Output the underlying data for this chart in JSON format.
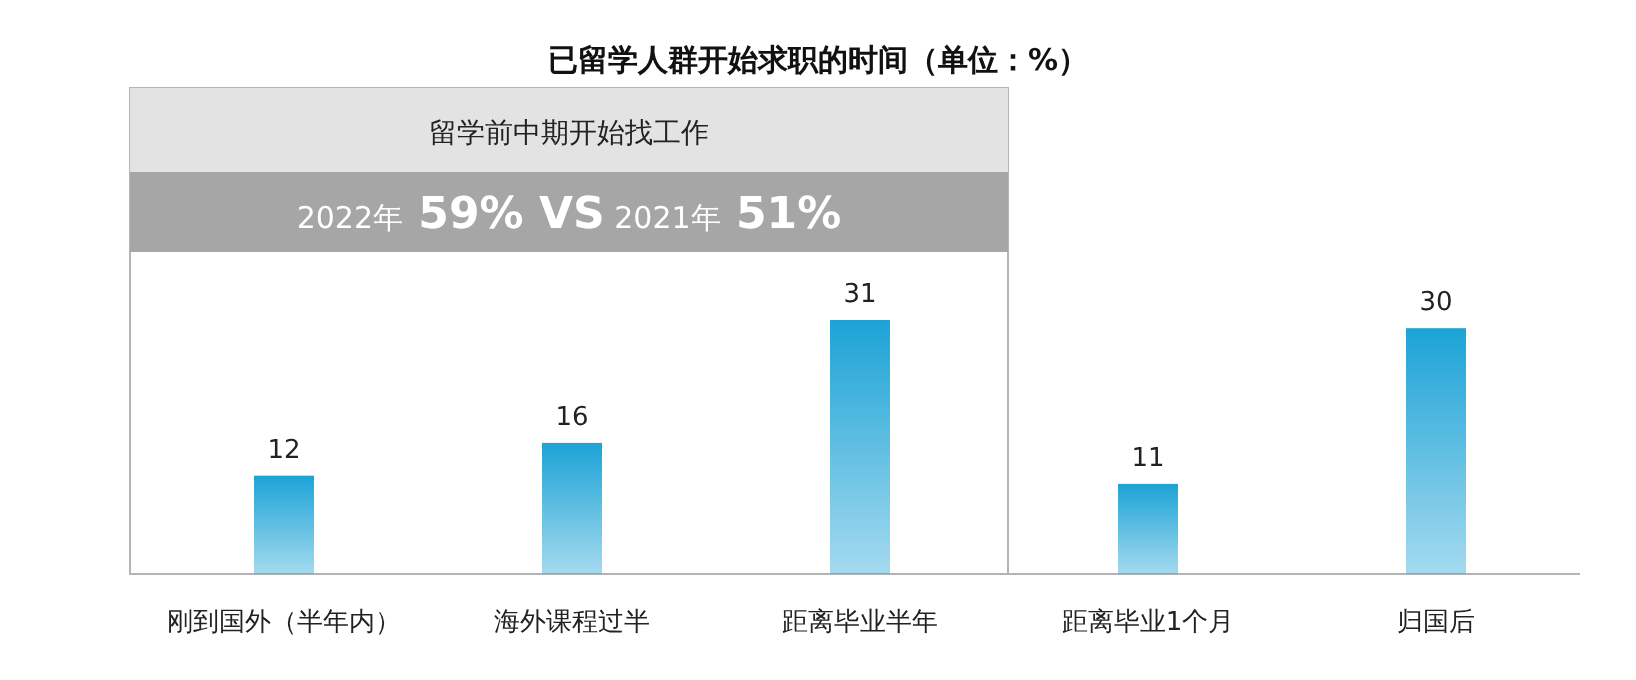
{
  "chart_data": {
    "type": "bar",
    "title": "已留学人群开始求职的时间（单位：%）",
    "categories": [
      "刚到国外（半年内）",
      "海外课程过半",
      "距离毕业半年",
      "距离毕业1个月",
      "归国后"
    ],
    "values": [
      12,
      16,
      31,
      11,
      30
    ],
    "color": "#1ca3d6",
    "data_labels": true,
    "annotations": [
      "留学前中期开始找工作",
      "2022年 59% VS 2021年 51%"
    ]
  }
}
